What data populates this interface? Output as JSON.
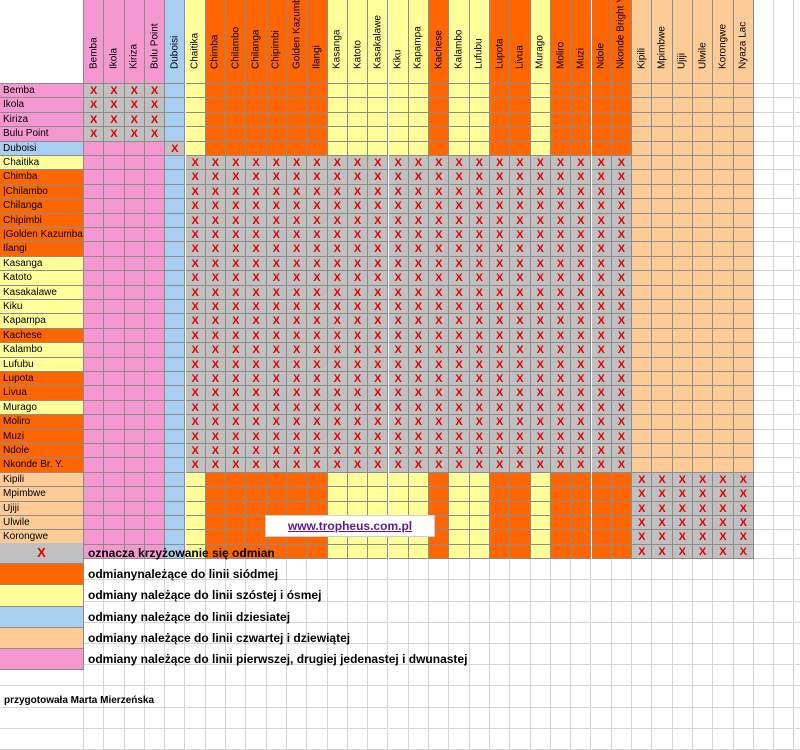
{
  "colors": {
    "pink": "#f598d2",
    "blue": "#a8cff0",
    "orange": "#ff6600",
    "yellow": "#ffff99",
    "peach": "#fccb96",
    "gray": "#c0c0c0",
    "mark_red": "#e00000"
  },
  "cross_mark": "X",
  "varieties": [
    {
      "name": "Bemba",
      "header": "Bemba",
      "group": "pink"
    },
    {
      "name": "Ikola",
      "header": "Ikola",
      "group": "pink"
    },
    {
      "name": "Kiriza",
      "header": "Kiriza",
      "group": "pink"
    },
    {
      "name": "Bulu Point",
      "header": "Bulu Point",
      "group": "pink"
    },
    {
      "name": "Duboisi",
      "header": "Duboisi",
      "group": "blue"
    },
    {
      "name": "Chaitika",
      "header": "Chaitika",
      "group": "yellow"
    },
    {
      "name": "Chimba",
      "header": "Chimba",
      "group": "orange"
    },
    {
      "name": "|Chilambo",
      "header": "Chilambo",
      "group": "orange"
    },
    {
      "name": "Chilanga",
      "header": "Chilanga",
      "group": "orange"
    },
    {
      "name": "Chipimbi",
      "header": "Chipimbi",
      "group": "orange"
    },
    {
      "name": "|Golden Kazumba",
      "header": "Golden Kazumba",
      "group": "orange"
    },
    {
      "name": "Ilangi",
      "header": "Ilangi",
      "group": "orange"
    },
    {
      "name": "Kasanga",
      "header": "Kasanga",
      "group": "yellow"
    },
    {
      "name": "Katoto",
      "header": "Katoto",
      "group": "yellow"
    },
    {
      "name": "Kasakalawe",
      "header": "Kasakalawe",
      "group": "yellow"
    },
    {
      "name": "Kiku",
      "header": "Kiku",
      "group": "yellow"
    },
    {
      "name": "Kapampa",
      "header": "Kapampa",
      "group": "yellow"
    },
    {
      "name": "Kachese",
      "header": "Kachese",
      "group": "orange"
    },
    {
      "name": "Kalambo",
      "header": "Kalambo",
      "group": "yellow"
    },
    {
      "name": "Lufubu",
      "header": "Lufubu",
      "group": "yellow"
    },
    {
      "name": "Lupota",
      "header": "Lupota",
      "group": "orange"
    },
    {
      "name": "Livua",
      "header": "Livua",
      "group": "orange"
    },
    {
      "name": "Murago",
      "header": "Murago",
      "group": "yellow"
    },
    {
      "name": "Moliro",
      "header": "Moliro",
      "group": "orange"
    },
    {
      "name": "Muzi",
      "header": "Muzi",
      "group": "orange"
    },
    {
      "name": "Ndole",
      "header": "Ndole",
      "group": "orange"
    },
    {
      "name": "Nkonde Br. Y.",
      "header": "Nkonde Bright Y.",
      "group": "orange"
    },
    {
      "name": "Kipili",
      "header": "Kipili",
      "group": "peach"
    },
    {
      "name": "Mpimbwe",
      "header": "Mpimbwe",
      "group": "peach"
    },
    {
      "name": "Ujiji",
      "header": "Ujiji",
      "group": "peach"
    },
    {
      "name": "Ulwile",
      "header": "Ulwile",
      "group": "peach"
    },
    {
      "name": "Korongwe",
      "header": "Korongwe",
      "group": "peach"
    },
    {
      "name": "Nyaza Lac",
      "header": "Nyaza Lac",
      "group": "peach"
    }
  ],
  "cross_blocks": [
    {
      "from": 0,
      "to": 3
    },
    {
      "from": 4,
      "to": 4
    },
    {
      "from": 5,
      "to": 26
    },
    {
      "from": 27,
      "to": 32
    }
  ],
  "website": "www.tropheus.com.pl",
  "legend": [
    {
      "swatch": "gray",
      "mark": "X",
      "text": "oznacza   krzyżowanie się odmian"
    },
    {
      "swatch": "orange",
      "text": "odmianynależące do linii siódmej"
    },
    {
      "swatch": "yellow",
      "text": "odmiany należące do linii szóstej i ósmej"
    },
    {
      "swatch": "blue",
      "text": "odmiany należące do linii dziesiatej"
    },
    {
      "swatch": "peach",
      "text": "odmiany należące do linii czwartej i dziewiątej"
    },
    {
      "swatch": "pink",
      "text": "odmiany należące do linii pierwszej, drugiej jedenastej i dwunastej"
    }
  ],
  "credit": "przygotowała Marta Mierzeńska"
}
